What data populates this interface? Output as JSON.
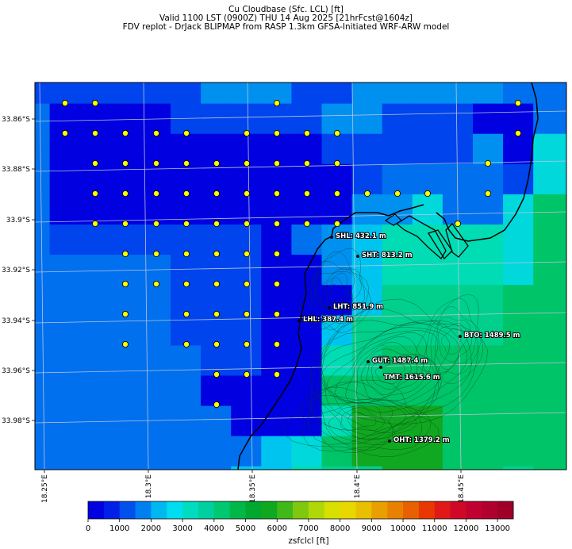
{
  "header": {
    "line1": "Cu Cloudbase (Sfc. LCL) [ft]",
    "line2": "Valid 1100 LST (0900Z) THU 14 Aug 2025 [21hrFcst@1604z]",
    "line3": "FDV replot - DrJack BLIPMAP from RASP 1.3km GFSA-Initiated WRF-ARW model"
  },
  "map": {
    "lat_ticks": [
      "33.86°S",
      "33.88°S",
      "33.9°S",
      "33.92°S",
      "33.94°S",
      "33.96°S",
      "33.98°S"
    ],
    "lon_ticks": [
      "18.25°E",
      "18.3°E",
      "18.35°E",
      "18.4°E",
      "18.45°E"
    ],
    "stations": [
      {
        "label": "SHL: 432.1 m"
      },
      {
        "label": "SHT: 813.2 m"
      },
      {
        "label": "LHT: 851.9 m"
      },
      {
        "label": "LHL: 387.4 m"
      },
      {
        "label": "BTO: 1489.5 m"
      },
      {
        "label": "GUT: 1487.4 m"
      },
      {
        "label": "TMT: 1615.6 m"
      },
      {
        "label": "OHT: 1379.2 m"
      }
    ]
  },
  "colorbar": {
    "ticks": [
      "0",
      "1000",
      "2000",
      "3000",
      "4000",
      "5000",
      "6000",
      "7000",
      "8000",
      "9000",
      "10000",
      "11000",
      "12000",
      "13000"
    ],
    "label": "zsfclcl [ft]",
    "colors": [
      "#0000e0",
      "#0020e8",
      "#0050ee",
      "#0080f0",
      "#00b8f0",
      "#00dcf0",
      "#00dcc0",
      "#00d0a0",
      "#00c870",
      "#00b848",
      "#00a830",
      "#10a820",
      "#40b818",
      "#80c810",
      "#b0d808",
      "#d8e000",
      "#e8d800",
      "#e8c000",
      "#e8a000",
      "#e88000",
      "#e86000",
      "#e83800",
      "#e01818",
      "#d00828",
      "#c00030",
      "#b00030",
      "#a00028"
    ]
  },
  "chart_data": {
    "type": "heatmap",
    "title": "Cu Cloudbase (Sfc. LCL) [ft]",
    "colorbar_label": "zsfclcl [ft]",
    "colorbar_range": [
      0,
      13500
    ],
    "lon_range": [
      18.24,
      18.49
    ],
    "lat_range": [
      -33.999,
      -33.847
    ],
    "stations": [
      {
        "name": "SHL",
        "elevation_m": 432.1,
        "lon": 18.378,
        "lat": -33.908
      },
      {
        "name": "SHT",
        "elevation_m": 813.2,
        "lon": 18.39,
        "lat": -33.915
      },
      {
        "name": "LHT",
        "elevation_m": 851.9,
        "lon": 18.377,
        "lat": -33.936
      },
      {
        "name": "LHL",
        "elevation_m": 387.4,
        "lon": 18.362,
        "lat": -33.941
      },
      {
        "name": "BTO",
        "elevation_m": 1489.5,
        "lon": 18.44,
        "lat": -33.947
      },
      {
        "name": "GUT",
        "elevation_m": 1487.4,
        "lon": 18.395,
        "lat": -33.957
      },
      {
        "name": "TMT",
        "elevation_m": 1615.6,
        "lon": 18.401,
        "lat": -33.959
      },
      {
        "name": "OHT",
        "elevation_m": 1379.2,
        "lon": 18.406,
        "lat": -33.99
      }
    ]
  }
}
